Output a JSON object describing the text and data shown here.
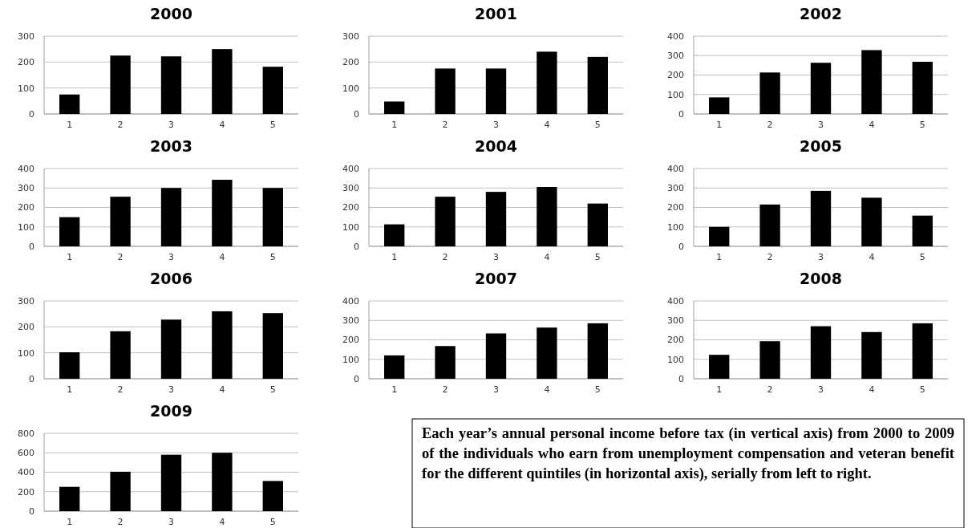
{
  "chart_data": [
    {
      "type": "bar",
      "title": "2000",
      "categories": [
        "1",
        "2",
        "3",
        "4",
        "5"
      ],
      "values": [
        75,
        225,
        222,
        250,
        182
      ],
      "color": "#000000",
      "ylim": [
        0,
        300
      ],
      "yticks": [
        0,
        100,
        200,
        300
      ],
      "grid": "y"
    },
    {
      "type": "bar",
      "title": "2001",
      "categories": [
        "1",
        "2",
        "3",
        "4",
        "5"
      ],
      "values": [
        48,
        175,
        175,
        240,
        220
      ],
      "color": "#000000",
      "ylim": [
        0,
        300
      ],
      "yticks": [
        0,
        100,
        200,
        300
      ],
      "grid": "y"
    },
    {
      "type": "bar",
      "title": "2002",
      "categories": [
        "1",
        "2",
        "3",
        "4",
        "5"
      ],
      "values": [
        85,
        213,
        263,
        328,
        268
      ],
      "color": "#000000",
      "ylim": [
        0,
        400
      ],
      "yticks": [
        0,
        100,
        200,
        300,
        400
      ],
      "grid": "y"
    },
    {
      "type": "bar",
      "title": "2003",
      "categories": [
        "1",
        "2",
        "3",
        "4",
        "5"
      ],
      "values": [
        150,
        255,
        300,
        342,
        300
      ],
      "color": "#000000",
      "ylim": [
        0,
        400
      ],
      "yticks": [
        0,
        100,
        200,
        300,
        400
      ],
      "grid": "y"
    },
    {
      "type": "bar",
      "title": "2004",
      "categories": [
        "1",
        "2",
        "3",
        "4",
        "5"
      ],
      "values": [
        113,
        255,
        280,
        305,
        220
      ],
      "color": "#000000",
      "ylim": [
        0,
        400
      ],
      "yticks": [
        0,
        100,
        200,
        300,
        400
      ],
      "grid": "y"
    },
    {
      "type": "bar",
      "title": "2005",
      "categories": [
        "1",
        "2",
        "3",
        "4",
        "5"
      ],
      "values": [
        100,
        215,
        285,
        250,
        158
      ],
      "color": "#000000",
      "ylim": [
        0,
        400
      ],
      "yticks": [
        0,
        100,
        200,
        300,
        400
      ],
      "grid": "y"
    },
    {
      "type": "bar",
      "title": "2006",
      "categories": [
        "1",
        "2",
        "3",
        "4",
        "5"
      ],
      "values": [
        102,
        183,
        228,
        260,
        253
      ],
      "color": "#000000",
      "ylim": [
        0,
        300
      ],
      "yticks": [
        0,
        100,
        200,
        300
      ],
      "grid": "y"
    },
    {
      "type": "bar",
      "title": "2007",
      "categories": [
        "1",
        "2",
        "3",
        "4",
        "5"
      ],
      "values": [
        120,
        168,
        233,
        263,
        285
      ],
      "color": "#000000",
      "ylim": [
        0,
        400
      ],
      "yticks": [
        0,
        100,
        200,
        300,
        400
      ],
      "grid": "y"
    },
    {
      "type": "bar",
      "title": "2008",
      "categories": [
        "1",
        "2",
        "3",
        "4",
        "5"
      ],
      "values": [
        123,
        193,
        270,
        240,
        285
      ],
      "color": "#000000",
      "ylim": [
        0,
        400
      ],
      "yticks": [
        0,
        100,
        200,
        300,
        400
      ],
      "grid": "y"
    },
    {
      "type": "bar",
      "title": "2009",
      "categories": [
        "1",
        "2",
        "3",
        "4",
        "5"
      ],
      "values": [
        250,
        405,
        580,
        600,
        310
      ],
      "color": "#000000",
      "ylim": [
        0,
        800
      ],
      "yticks": [
        0,
        200,
        400,
        600,
        800
      ],
      "grid": "y"
    },
    {
      "type": "other",
      "annotations": [
        "Each year’s annual personal income before tax (in vertical axis) from 2000 to 2009 of the individuals who earn from unemployment compensation and veteran benefit for the different quintiles (in horizontal axis), serially from left to right."
      ]
    }
  ]
}
